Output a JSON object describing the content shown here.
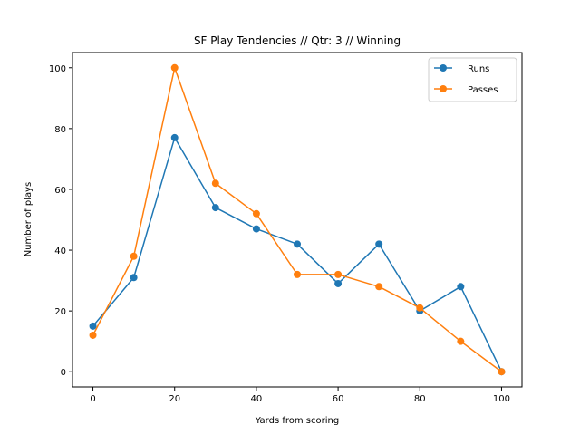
{
  "chart_data": {
    "type": "line",
    "title": "SF Play Tendencies // Qtr: 3 // Winning",
    "xlabel": "Yards from scoring",
    "ylabel": "Number of plays",
    "x": [
      0,
      10,
      20,
      30,
      40,
      50,
      60,
      70,
      80,
      90,
      100
    ],
    "xlim": [
      -5,
      105
    ],
    "ylim": [
      -5,
      105
    ],
    "xticks": [
      0,
      20,
      40,
      60,
      80,
      100
    ],
    "yticks": [
      0,
      20,
      40,
      60,
      80,
      100
    ],
    "grid": false,
    "legend_position": "top-right",
    "series": [
      {
        "name": "Runs",
        "color": "#1f77b4",
        "marker": "circle",
        "values": [
          15,
          31,
          77,
          54,
          47,
          42,
          29,
          42,
          20,
          28,
          0
        ]
      },
      {
        "name": "Passes",
        "color": "#ff7f0e",
        "marker": "circle",
        "values": [
          12,
          38,
          100,
          62,
          52,
          32,
          32,
          28,
          21,
          10,
          0
        ]
      }
    ]
  }
}
